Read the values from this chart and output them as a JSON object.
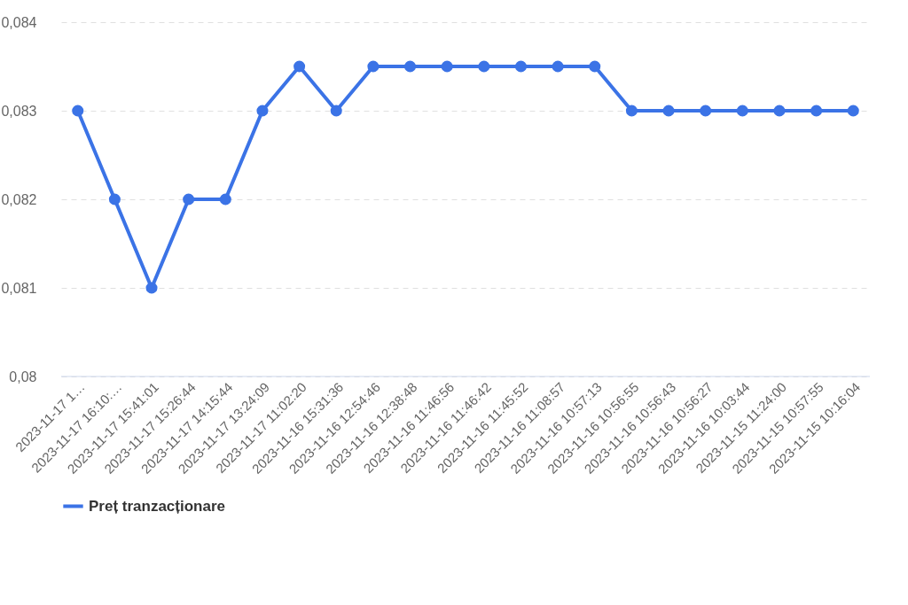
{
  "chart_data": {
    "type": "line",
    "categories": [
      "2023-11-17 1…",
      "2023-11-17 16:10:…",
      "2023-11-17 15:41:01",
      "2023-11-17 15:26:44",
      "2023-11-17 14:15:44",
      "2023-11-17 13:24:09",
      "2023-11-17 11:02:20",
      "2023-11-16 15:31:36",
      "2023-11-16 12:54:46",
      "2023-11-16 12:38:48",
      "2023-11-16 11:46:56",
      "2023-11-16 11:46:42",
      "2023-11-16 11:45:52",
      "2023-11-16 11:08:57",
      "2023-11-16 10:57:13",
      "2023-11-16 10:56:55",
      "2023-11-16 10:56:43",
      "2023-11-16 10:56:27",
      "2023-11-16 10:03:44",
      "2023-11-15 11:24:00",
      "2023-11-15 10:57:55",
      "2023-11-15 10:16:04"
    ],
    "series": [
      {
        "name": "Preț tranzacționare",
        "color": "#3b73e6",
        "values": [
          0.083,
          0.082,
          0.081,
          0.082,
          0.082,
          0.083,
          0.0835,
          0.083,
          0.0835,
          0.0835,
          0.0835,
          0.0835,
          0.0835,
          0.0835,
          0.0835,
          0.083,
          0.083,
          0.083,
          0.083,
          0.083,
          0.083,
          0.083
        ]
      }
    ],
    "ylim": [
      0.08,
      0.084
    ],
    "yticks": [
      {
        "value": 0.08,
        "label": "0,08"
      },
      {
        "value": 0.081,
        "label": "0,081"
      },
      {
        "value": 0.082,
        "label": "0,082"
      },
      {
        "value": 0.083,
        "label": "0,083"
      },
      {
        "value": 0.084,
        "label": "0,084"
      }
    ],
    "grid": "y",
    "legend": "bottom",
    "marker": "circle",
    "line_style": "solid"
  }
}
